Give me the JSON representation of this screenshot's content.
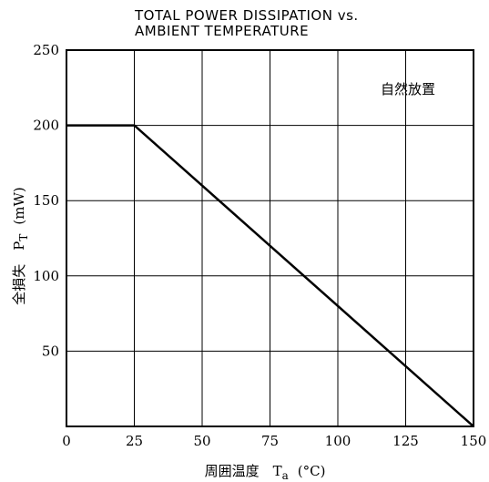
{
  "chart_data": {
    "type": "line",
    "title_line1": "TOTAL POWER DISSIPATION vs.",
    "title_line2": "AMBIENT TEMPERATURE",
    "xlabel": "周囲温度　T",
    "xlabel_sub": "a",
    "xlabel_unit": "(°C)",
    "ylabel": "全損失　P",
    "ylabel_sub": "T",
    "ylabel_unit": "(mW)",
    "annotation": "自然放置",
    "xlim": [
      0,
      150
    ],
    "ylim": [
      0,
      250
    ],
    "x_ticks": [
      "0",
      "25",
      "50",
      "75",
      "100",
      "125",
      "150"
    ],
    "y_ticks": [
      "0",
      "50",
      "100",
      "150",
      "200",
      "250"
    ],
    "grid": true,
    "series": [
      {
        "x": [
          0,
          25,
          150
        ],
        "y": [
          200,
          200,
          0
        ]
      }
    ]
  }
}
